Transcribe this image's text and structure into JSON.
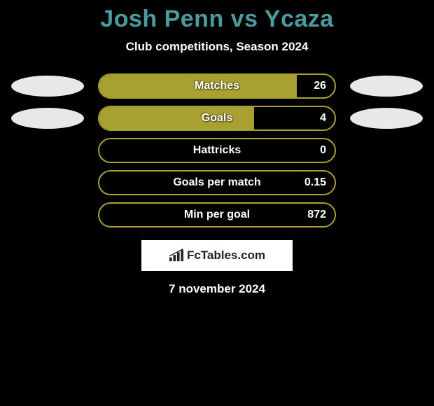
{
  "title": "Josh Penn vs Ycaza",
  "subtitle": "Club competitions, Season 2024",
  "title_color": "#4a9b9e",
  "text_color": "#ffffff",
  "background_color": "#000000",
  "bar_color": "#a8a030",
  "bar_border_color": "#a8a030",
  "ellipse_color": "#e8e8e8",
  "brand_bg": "#ffffff",
  "brand_text_color": "#222222",
  "stats": [
    {
      "label": "Matches",
      "value": "26",
      "fill_pct": 83,
      "show_ellipses": true
    },
    {
      "label": "Goals",
      "value": "4",
      "fill_pct": 65,
      "show_ellipses": true
    },
    {
      "label": "Hattricks",
      "value": "0",
      "fill_pct": 0,
      "show_ellipses": false
    },
    {
      "label": "Goals per match",
      "value": "0.15",
      "fill_pct": 0,
      "show_ellipses": false
    },
    {
      "label": "Min per goal",
      "value": "872",
      "fill_pct": 0,
      "show_ellipses": false
    }
  ],
  "brand": "FcTables.com",
  "date": "7 november 2024",
  "fontsize": {
    "title": 34,
    "subtitle": 17,
    "bar": 16,
    "brand": 17,
    "date": 17
  }
}
